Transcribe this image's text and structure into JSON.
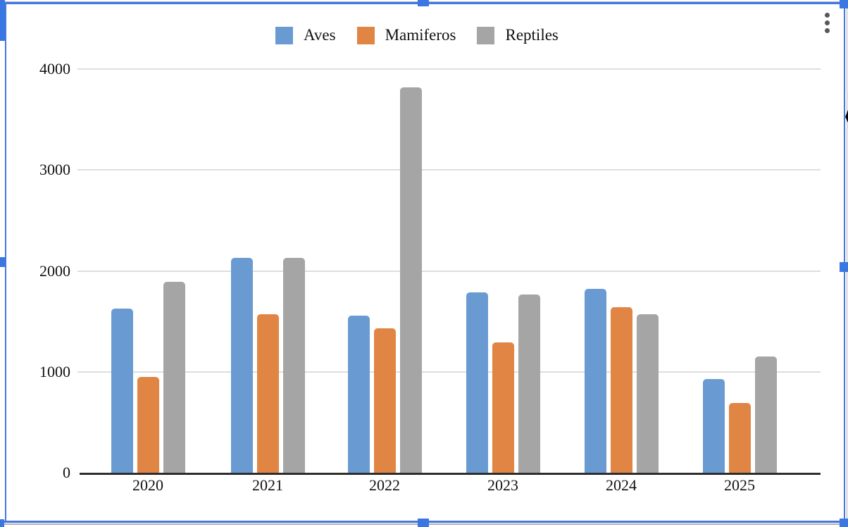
{
  "menu": {
    "icon": "kebab-menu-icon"
  },
  "selection": {
    "handle_color": "#3B77E3",
    "border_color": "#4478DD"
  },
  "chart_data": {
    "type": "bar",
    "title": "",
    "xlabel": "",
    "ylabel": "",
    "categories": [
      "2020",
      "2021",
      "2022",
      "2023",
      "2024",
      "2025"
    ],
    "series": [
      {
        "name": "Aves",
        "color": "#699BD2",
        "values": [
          1630,
          2130,
          1560,
          1790,
          1820,
          930
        ]
      },
      {
        "name": "Mamiferos",
        "color": "#E08543",
        "values": [
          950,
          1570,
          1430,
          1290,
          1640,
          690
        ]
      },
      {
        "name": "Reptiles",
        "color": "#A5A5A5",
        "values": [
          1890,
          2130,
          3820,
          1765,
          1570,
          1150
        ]
      }
    ],
    "ylim": [
      0,
      4000
    ],
    "yticks": [
      0,
      1000,
      2000,
      3000,
      4000
    ],
    "grid": true,
    "legend_position": "top",
    "gridline_color": "#DEDEDE",
    "axis_line_color": "#2D2D2D"
  }
}
